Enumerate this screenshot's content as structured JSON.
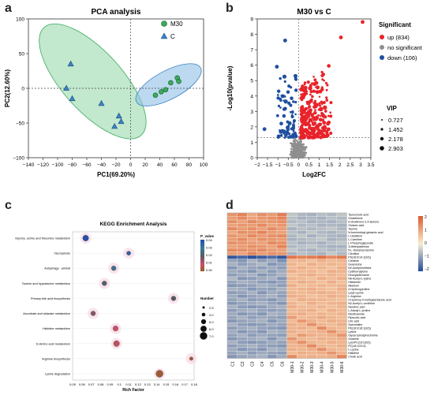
{
  "labels": {
    "a": "a",
    "b": "b",
    "c": "c",
    "d": "d"
  },
  "chart_data": [
    {
      "id": "a",
      "type": "scatter",
      "title": "PCA analysis",
      "xlabel": "PC1(69.20%)",
      "ylabel": "PC2(12.60%)",
      "xlim": [
        -140,
        100
      ],
      "ylim": [
        -100,
        100
      ],
      "xticks": [
        "−140",
        "−120",
        "−100",
        "−80",
        "−60",
        "−40",
        "−20",
        "0",
        "20",
        "40",
        "60",
        "80",
        "100"
      ],
      "yticks": [
        "−100",
        "−50",
        "0",
        "50",
        "100"
      ],
      "legend_position": "top-right",
      "series": [
        {
          "name": "M30",
          "color": "#3aaa5c",
          "marker": "circle",
          "points": [
            [
              34,
              -10
            ],
            [
              42,
              -5
            ],
            [
              48,
              -2
            ],
            [
              55,
              8
            ],
            [
              64,
              15
            ],
            [
              66,
              10
            ]
          ]
        },
        {
          "name": "C",
          "color": "#3c82c4",
          "marker": "triangle",
          "points": [
            [
              -82,
              35
            ],
            [
              -88,
              0
            ],
            [
              -80,
              -15
            ],
            [
              -40,
              -22
            ],
            [
              -22,
              -55
            ],
            [
              -13,
              -48
            ],
            [
              -16,
              -40
            ]
          ]
        }
      ]
    },
    {
      "id": "b",
      "type": "scatter",
      "title": "M30 vs C",
      "xlabel": "Log2FC",
      "ylabel": "-Log10(pvalue)",
      "xlim": [
        -2,
        3.5
      ],
      "ylim": [
        0,
        9
      ],
      "xticks": [
        "−2",
        "−1.5",
        "−1",
        "−0.5",
        "0",
        "0.5",
        "1",
        "1.5",
        "2",
        "2.5",
        "3",
        "3.5"
      ],
      "yticks": [
        "0",
        "1",
        "2",
        "3",
        "4",
        "5",
        "6",
        "7",
        "8",
        "9"
      ],
      "legend_title": "Significant",
      "legend": [
        {
          "label": "up (834)",
          "color": "#e8232a"
        },
        {
          "label": "no significant",
          "color": "#8f8f8f"
        },
        {
          "label": "down (106)",
          "color": "#1f4fa0"
        }
      ],
      "size_title": "VIP",
      "size_legend": [
        "0.727",
        "1.452",
        "2.178",
        "2.903"
      ],
      "counts": {
        "up": 834,
        "down": 106
      },
      "highlight": [
        [
          3.1,
          8.8
        ],
        [
          2.05,
          7.8
        ],
        [
          -1.65,
          1.85
        ],
        [
          -1.05,
          5.9
        ],
        [
          -0.65,
          7.6
        ]
      ]
    },
    {
      "id": "c",
      "type": "scatter",
      "title": "KEGG Enrichment Analysis",
      "xlabel": "Rich Factor",
      "xlim": [
        0.05,
        0.18
      ],
      "xticks": [
        "0.05",
        "0.06",
        "0.07",
        "0.08",
        "0.09",
        "0.1",
        "0.11",
        "0.12",
        "0.13",
        "0.14",
        "0.15",
        "0.16",
        "0.17",
        "0.18"
      ],
      "categories": [
        "Glycine, serine and threonine metabolism",
        "Necroptosis",
        "Autophagy - animal",
        "Taurine and hypotaurine metabolism",
        "Primary bile acid biosynthesis",
        "Ascorbate and aldarate metabolism",
        "Histidine metabolism",
        "D-Amino acid metabolism",
        "Arginine biosynthesis",
        "Lysine degradation"
      ],
      "rich_factor": [
        0.064,
        0.11,
        0.094,
        0.084,
        0.158,
        0.072,
        0.096,
        0.097,
        0.177,
        0.143
      ],
      "p_value": [
        0.04,
        0.035,
        0.028,
        0.022,
        0.02,
        0.016,
        0.01,
        0.008,
        0.004,
        0.003
      ],
      "number": [
        5.0,
        3.5,
        4.0,
        4.0,
        4.0,
        4.0,
        4.5,
        5.0,
        3.0,
        6.0
      ],
      "color_legend_title": "P_value",
      "color_ticks": [
        "0.04",
        "0.03",
        "0.02",
        "0.01",
        "0.00"
      ],
      "size_legend_title": "Number",
      "size_ticks": [
        "2.5",
        "4.0",
        "5.0",
        "6.0",
        "7.0"
      ]
    },
    {
      "id": "d",
      "type": "heatmap",
      "columns": [
        "C1",
        "C2",
        "C3",
        "C4",
        "C5",
        "C6",
        "M30-1",
        "M30-2",
        "M30-3",
        "M30-4",
        "M30-5",
        "M30-6"
      ],
      "rows": [
        "Taurocholic acid",
        "Glutathione",
        "D-Arabinono-1,4-lactone",
        "Glutaric acid",
        "Taurine",
        "N-formimidoyl-glutamic acid",
        "L-Histidinol",
        "L-Carnitine",
        "L-Phosphoglycerate",
        "3-Methyladenine",
        "5-L-Glutamyl-taurine",
        "Citrulline",
        "PS(18:0/14:1(9Z))",
        "Creatine",
        "Guanosine",
        "N2-Acetylornithine",
        "Cystinyl-glycine",
        "Deoxyadenosine",
        "N6-Acetyl-L-lysine",
        "Histamine",
        "Allantoin",
        "4-Hydroxyproline",
        "Lysyl-Lysine",
        "L-Arginine",
        "2-Hydroxy-4-methylpentanoic acid",
        "N2-Acetyl-L-ornithine",
        "Nicotinic acid",
        "L-Alanyl-L-proline",
        "Nicotinamide",
        "Pipecolic acid",
        "Uric acid",
        "Spermidine",
        "PE(16:0/18:1(9Z))",
        "Lysine",
        "Glycerophosphocholine",
        "Guanine",
        "LysoPC(18:1(9Z))",
        "PC(18:1/22:6)",
        "L-Lysine",
        "Histidine",
        "Cholic acid"
      ],
      "matrix": [
        [
          1.4,
          1.7,
          1.1,
          1.5,
          1.3,
          1.8,
          -0.6,
          -0.8,
          -0.9,
          -0.7,
          -0.8,
          -0.6
        ],
        [
          1.3,
          1.6,
          1.2,
          1.4,
          1.5,
          1.7,
          -0.7,
          -0.9,
          -0.8,
          -0.9,
          -0.7,
          -0.8
        ],
        [
          1.5,
          1.2,
          1.6,
          1.3,
          1.4,
          1.5,
          -0.8,
          -0.7,
          -0.9,
          -0.8,
          -0.9,
          -0.7
        ],
        [
          1.2,
          1.4,
          1.3,
          1.6,
          1.2,
          1.4,
          -0.6,
          -0.8,
          -0.7,
          -0.9,
          -0.8,
          -0.9
        ],
        [
          1.6,
          1.3,
          1.5,
          1.2,
          1.6,
          1.3,
          -0.9,
          -0.7,
          -0.8,
          -0.7,
          -0.6,
          -0.8
        ],
        [
          1.1,
          1.5,
          1.4,
          1.7,
          1.3,
          1.2,
          -0.7,
          -0.9,
          -0.6,
          -0.8,
          -0.9,
          -0.7
        ],
        [
          1.4,
          1.2,
          1.6,
          1.3,
          1.5,
          1.6,
          -0.8,
          -0.6,
          -0.9,
          -0.7,
          -0.8,
          -0.9
        ],
        [
          1.3,
          1.6,
          1.2,
          1.5,
          1.4,
          1.3,
          -0.9,
          -0.8,
          -0.7,
          -0.6,
          -0.9,
          -0.8
        ],
        [
          1.5,
          1.4,
          1.3,
          1.2,
          1.6,
          1.5,
          -0.7,
          -0.9,
          -0.8,
          -0.9,
          -0.7,
          -0.6
        ],
        [
          1.2,
          1.3,
          1.5,
          1.4,
          1.2,
          1.7,
          -0.8,
          -0.7,
          -0.6,
          -0.8,
          -0.9,
          -0.9
        ],
        [
          1.6,
          1.5,
          1.4,
          1.6,
          1.3,
          1.2,
          -0.6,
          -0.8,
          -0.9,
          -0.7,
          -0.8,
          -0.7
        ],
        [
          1.3,
          1.2,
          1.7,
          1.3,
          1.5,
          1.4,
          -0.9,
          -0.7,
          -0.8,
          -0.9,
          -0.6,
          -0.8
        ],
        [
          -2.2,
          -2.0,
          -2.3,
          -2.1,
          -1.9,
          -2.2,
          1.9,
          1.7,
          1.8,
          2.0,
          1.6,
          1.8
        ],
        [
          -1.1,
          -1.3,
          -0.9,
          -1.2,
          -1.0,
          -1.4,
          0.8,
          0.9,
          0.7,
          1.0,
          0.8,
          0.9
        ],
        [
          -0.9,
          -1.2,
          -1.0,
          -0.8,
          -1.3,
          -1.1,
          0.9,
          0.7,
          1.0,
          0.8,
          0.9,
          0.8
        ],
        [
          -1.3,
          -0.9,
          -1.1,
          -1.2,
          -1.0,
          -1.2,
          0.8,
          1.0,
          0.8,
          0.9,
          0.7,
          1.0
        ],
        [
          -1.0,
          -1.1,
          -1.3,
          -0.9,
          -1.2,
          -1.0,
          1.0,
          0.8,
          0.9,
          0.7,
          1.0,
          0.9
        ],
        [
          -1.2,
          -1.0,
          -0.9,
          -1.3,
          -1.1,
          -0.9,
          0.7,
          0.9,
          1.0,
          0.8,
          0.9,
          0.8
        ],
        [
          -0.8,
          -1.3,
          -1.2,
          -1.0,
          -0.9,
          -1.3,
          0.9,
          0.8,
          0.7,
          1.0,
          0.8,
          1.0
        ],
        [
          -1.1,
          -0.9,
          -1.0,
          -1.2,
          -1.3,
          -1.1,
          0.8,
          1.0,
          0.9,
          0.7,
          1.0,
          0.7
        ],
        [
          -1.3,
          -1.2,
          -1.1,
          -0.9,
          -1.0,
          -1.2,
          1.0,
          0.7,
          0.8,
          0.9,
          0.8,
          0.9
        ],
        [
          -0.9,
          -1.0,
          -1.3,
          -1.1,
          -1.2,
          -0.9,
          0.8,
          0.9,
          1.0,
          0.8,
          0.7,
          1.0
        ],
        [
          -1.2,
          -1.1,
          -0.9,
          -1.3,
          -1.0,
          -1.1,
          0.9,
          0.8,
          0.9,
          1.0,
          0.9,
          0.8
        ],
        [
          -1.0,
          -1.3,
          -1.1,
          -1.0,
          -0.9,
          -1.2,
          1.0,
          0.9,
          0.7,
          0.8,
          1.0,
          0.9
        ],
        [
          -1.1,
          -0.9,
          -1.2,
          -1.1,
          -1.3,
          -1.0,
          0.7,
          1.0,
          0.9,
          0.9,
          0.8,
          0.7
        ],
        [
          -1.3,
          -1.1,
          -1.0,
          -0.9,
          -1.1,
          -1.3,
          0.9,
          0.7,
          1.0,
          0.8,
          0.9,
          1.0
        ],
        [
          -0.9,
          -1.2,
          -1.3,
          -1.2,
          -1.0,
          -0.9,
          1.0,
          0.8,
          0.8,
          0.9,
          0.7,
          0.9
        ],
        [
          -1.2,
          -1.0,
          -0.9,
          -1.1,
          -1.2,
          -1.1,
          0.8,
          0.9,
          1.0,
          0.7,
          1.0,
          0.8
        ],
        [
          -1.0,
          -1.3,
          -1.1,
          -1.3,
          -0.9,
          -1.0,
          0.9,
          1.0,
          0.8,
          0.9,
          0.8,
          0.9
        ],
        [
          -1.1,
          -0.9,
          -1.2,
          -1.0,
          -1.1,
          -1.2,
          1.3,
          0.8,
          0.9,
          1.1,
          0.9,
          0.8
        ],
        [
          -1.3,
          -1.1,
          -1.0,
          -0.9,
          -1.3,
          -1.0,
          0.8,
          1.4,
          1.0,
          0.8,
          1.0,
          0.9
        ],
        [
          -0.9,
          -1.2,
          -1.3,
          -1.2,
          -1.0,
          -1.1,
          1.0,
          0.9,
          1.5,
          0.9,
          0.8,
          1.0
        ],
        [
          -1.2,
          -1.0,
          -0.9,
          -1.1,
          -1.2,
          -1.3,
          0.9,
          1.0,
          0.8,
          1.6,
          0.9,
          0.8
        ],
        [
          -1.0,
          -1.3,
          -1.1,
          -1.3,
          -0.9,
          -1.0,
          1.0,
          0.8,
          0.9,
          1.0,
          1.5,
          0.9
        ],
        [
          -1.1,
          -0.9,
          -1.2,
          -1.0,
          -1.1,
          -1.2,
          0.8,
          1.3,
          1.0,
          0.9,
          1.0,
          1.4
        ],
        [
          -1.3,
          -1.1,
          -1.0,
          -0.9,
          -1.3,
          -0.9,
          1.4,
          0.9,
          0.8,
          1.0,
          0.9,
          1.0
        ],
        [
          -0.9,
          -1.2,
          -1.3,
          -1.2,
          -1.0,
          -1.1,
          1.0,
          1.5,
          0.9,
          0.8,
          1.0,
          0.9
        ],
        [
          -1.2,
          -1.0,
          -0.9,
          -1.1,
          -1.2,
          -1.3,
          0.9,
          1.0,
          1.6,
          0.9,
          0.8,
          1.0
        ],
        [
          -1.0,
          -1.3,
          -1.1,
          -1.3,
          -0.9,
          -1.0,
          1.0,
          0.9,
          1.0,
          1.5,
          0.9,
          0.8
        ],
        [
          -1.1,
          -0.9,
          -1.2,
          -1.0,
          -1.1,
          -1.2,
          0.8,
          1.0,
          0.9,
          1.0,
          1.4,
          0.9
        ],
        [
          -1.3,
          -1.1,
          -1.0,
          -0.9,
          -1.3,
          -1.0,
          1.6,
          0.9,
          1.0,
          0.9,
          1.0,
          1.7
        ]
      ],
      "colorbar_ticks": [
        "2",
        "1",
        "0",
        "−1",
        "−2"
      ]
    }
  ]
}
